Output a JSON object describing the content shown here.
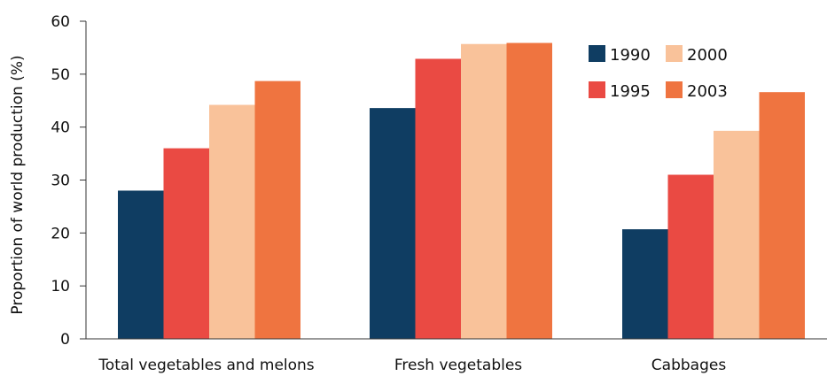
{
  "chart_data": {
    "type": "bar",
    "title": "",
    "xlabel": "",
    "ylabel": "Proportion of world production (%)",
    "ylim": [
      0,
      60
    ],
    "yticks": [
      0,
      10,
      20,
      30,
      40,
      50,
      60
    ],
    "grid": false,
    "legend_position": "top-right",
    "categories": [
      "Total vegetables and melons",
      "Fresh vegetables",
      "Cabbages"
    ],
    "series": [
      {
        "name": "1990",
        "color": "#0f3d62",
        "values": [
          28,
          43.6,
          20.7
        ]
      },
      {
        "name": "1995",
        "color": "#ea4a43",
        "values": [
          36,
          52.9,
          31
        ]
      },
      {
        "name": "2000",
        "color": "#f9c29a",
        "values": [
          44.2,
          55.7,
          39.3
        ]
      },
      {
        "name": "2003",
        "color": "#ef7440",
        "values": [
          48.7,
          55.9,
          46.6
        ]
      }
    ]
  }
}
